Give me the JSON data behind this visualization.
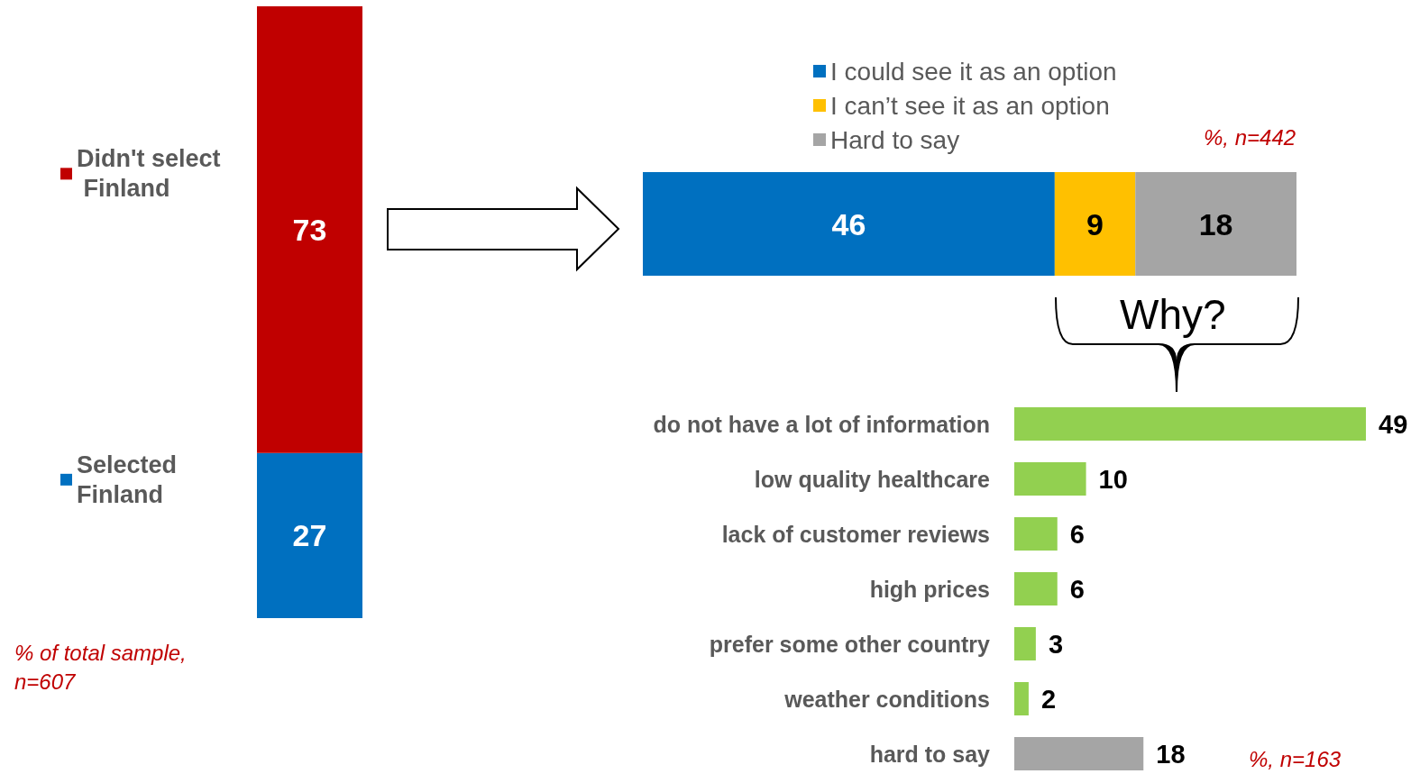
{
  "chart_data": [
    {
      "type": "bar",
      "stacked": true,
      "categories": [
        null
      ],
      "legend": "left",
      "data_labels": true,
      "series": [
        {
          "name": "Selected Finland",
          "color": "#0070c0",
          "values": [
            27
          ]
        },
        {
          "name": "Didn't select Finland",
          "color": "#c00000",
          "values": [
            73
          ]
        }
      ],
      "annotations": [
        "% of total sample, n=607"
      ]
    },
    {
      "type": "bar",
      "stacked": true,
      "orientation": "horizontal",
      "categories": [
        null
      ],
      "legend": "top",
      "data_labels": true,
      "series": [
        {
          "name": "I could see it as an option",
          "color": "#0070c0",
          "values": [
            46
          ]
        },
        {
          "name": "I can’t see it as an option",
          "color": "#ffc000",
          "values": [
            9
          ]
        },
        {
          "name": "Hard to say",
          "color": "#a5a5a5",
          "values": [
            18
          ]
        }
      ],
      "annotations": [
        "%, n=442",
        "Why?"
      ]
    },
    {
      "type": "bar",
      "orientation": "horizontal",
      "data_labels": true,
      "categories": [
        "do not have a lot of information",
        "low quality healthcare",
        "lack of customer reviews",
        "high prices",
        "prefer some other country",
        "weather conditions",
        "hard to say"
      ],
      "values": [
        49,
        10,
        6,
        6,
        3,
        2,
        18
      ],
      "colors": [
        "#92d050",
        "#92d050",
        "#92d050",
        "#92d050",
        "#92d050",
        "#92d050",
        "#a5a5a5"
      ],
      "annotations": [
        "%, n=163"
      ]
    }
  ]
}
